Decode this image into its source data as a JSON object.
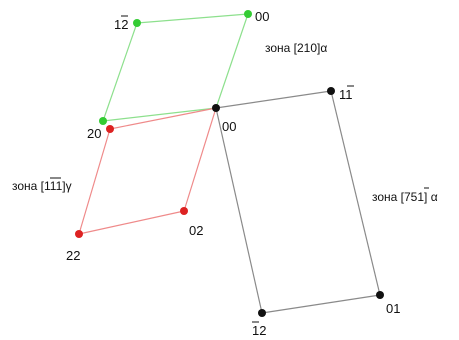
{
  "colors": {
    "green": "#33cc33",
    "green_line": "#8de08d",
    "red": "#dd2222",
    "red_line": "#ef8a8a",
    "black": "#111111",
    "black_line": "#8a8a8a"
  },
  "zones": {
    "green": {
      "label": "зона [210]α"
    },
    "red": {
      "label": "зона [111]γ"
    },
    "black": {
      "label": "зона [751] α"
    }
  },
  "points": {
    "green_12": {
      "label": "12"
    },
    "green_00": {
      "label": "00"
    },
    "green_20": {
      "label": "20"
    },
    "center_00": {
      "label": "00"
    },
    "red_02": {
      "label": "02"
    },
    "red_22": {
      "label": "22"
    },
    "black_11": {
      "label": "11"
    },
    "black_01": {
      "label": "01"
    },
    "black_12": {
      "label": "12"
    }
  }
}
